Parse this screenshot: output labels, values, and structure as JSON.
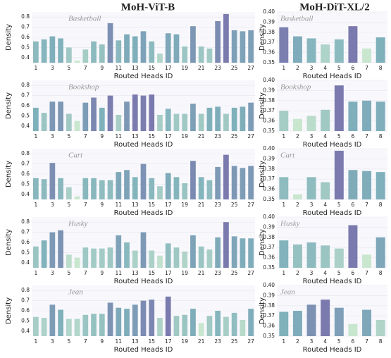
{
  "headers": [
    "MoH-ViT-B",
    "MoH-DiT-XL/2"
  ],
  "chart_data": [
    {
      "type": "bar",
      "title": "Basketball",
      "xlabel": "Routed Heads ID",
      "ylabel": "Density",
      "categories": [
        1,
        null,
        3,
        null,
        5,
        null,
        7,
        null,
        9,
        null,
        11,
        null,
        13,
        null,
        15,
        null,
        17,
        null,
        19,
        null,
        21,
        null,
        23,
        null,
        25,
        null,
        27
      ],
      "values": [
        0.56,
        0.58,
        0.61,
        0.59,
        0.5,
        0.37,
        0.48,
        0.56,
        0.53,
        0.74,
        0.57,
        0.63,
        0.61,
        0.66,
        0.56,
        0.44,
        0.64,
        0.63,
        0.51,
        0.71,
        0.51,
        0.49,
        0.76,
        0.83,
        0.67,
        0.66,
        0.67
      ],
      "ylim": [
        0.35,
        0.85
      ],
      "yticks": [
        0.4,
        0.5,
        0.6,
        0.7,
        0.8
      ],
      "grid": true,
      "colormap": [
        "#c9e6cf",
        "#7fb1bb",
        "#7b7aae"
      ]
    },
    {
      "type": "bar",
      "title": "Bookshop",
      "xlabel": "Routed Heads ID",
      "ylabel": "Density",
      "categories": [
        1,
        null,
        3,
        null,
        5,
        null,
        7,
        null,
        9,
        null,
        11,
        null,
        13,
        null,
        15,
        null,
        17,
        null,
        19,
        null,
        21,
        null,
        23,
        null,
        25,
        null,
        27
      ],
      "values": [
        0.58,
        0.53,
        0.64,
        0.64,
        0.52,
        0.45,
        0.63,
        0.68,
        0.58,
        0.7,
        0.51,
        0.64,
        0.71,
        0.7,
        0.71,
        0.51,
        0.57,
        0.52,
        0.52,
        0.62,
        0.52,
        0.58,
        0.59,
        0.52,
        0.58,
        0.59,
        0.63
      ],
      "ylim": [
        0.35,
        0.85
      ],
      "yticks": [
        0.4,
        0.5,
        0.6,
        0.7,
        0.8
      ],
      "grid": true,
      "colormap": [
        "#c9e6cf",
        "#7fb1bb",
        "#7b7aae"
      ]
    },
    {
      "type": "bar",
      "title": "Cart",
      "xlabel": "Routed Heads ID",
      "ylabel": "Density",
      "categories": [
        1,
        null,
        3,
        null,
        5,
        null,
        7,
        null,
        9,
        null,
        11,
        null,
        13,
        null,
        15,
        null,
        17,
        null,
        19,
        null,
        21,
        null,
        23,
        null,
        25,
        null,
        27
      ],
      "values": [
        0.56,
        0.55,
        0.71,
        0.56,
        0.47,
        0.38,
        0.56,
        0.56,
        0.54,
        0.54,
        0.62,
        0.64,
        0.57,
        0.7,
        0.56,
        0.48,
        0.61,
        0.57,
        0.51,
        0.73,
        0.57,
        0.54,
        0.67,
        0.79,
        0.68,
        0.66,
        0.68
      ],
      "ylim": [
        0.35,
        0.85
      ],
      "yticks": [
        0.4,
        0.5,
        0.6,
        0.7,
        0.8
      ],
      "grid": true,
      "colormap": [
        "#c9e6cf",
        "#7fb1bb",
        "#7b7aae"
      ]
    },
    {
      "type": "bar",
      "title": "Husky",
      "xlabel": "Routed Heads ID",
      "ylabel": "Density",
      "categories": [
        1,
        null,
        3,
        null,
        5,
        null,
        7,
        null,
        9,
        null,
        11,
        null,
        13,
        null,
        15,
        null,
        17,
        null,
        19,
        null,
        21,
        null,
        23,
        null,
        25,
        null,
        27
      ],
      "values": [
        0.56,
        0.62,
        0.7,
        0.72,
        0.48,
        0.45,
        0.55,
        0.54,
        0.54,
        0.55,
        0.67,
        0.6,
        0.52,
        0.7,
        0.52,
        0.47,
        0.59,
        0.55,
        0.51,
        0.67,
        0.56,
        0.53,
        0.65,
        0.8,
        0.66,
        0.64,
        0.64
      ],
      "ylim": [
        0.35,
        0.85
      ],
      "yticks": [
        0.4,
        0.5,
        0.6,
        0.7,
        0.8
      ],
      "grid": true,
      "colormap": [
        "#c9e6cf",
        "#7fb1bb",
        "#7b7aae"
      ]
    },
    {
      "type": "bar",
      "title": "Jean",
      "xlabel": "Routed Heads ID",
      "ylabel": "Density",
      "categories": [
        1,
        null,
        3,
        null,
        5,
        null,
        7,
        null,
        9,
        null,
        11,
        null,
        13,
        null,
        15,
        null,
        17,
        null,
        19,
        null,
        21,
        null,
        23,
        null,
        25,
        null,
        27
      ],
      "values": [
        0.54,
        0.53,
        0.66,
        0.61,
        0.52,
        0.52,
        0.56,
        0.57,
        0.57,
        0.68,
        0.63,
        0.62,
        0.66,
        0.7,
        0.71,
        0.53,
        0.74,
        0.55,
        0.56,
        0.62,
        0.48,
        0.55,
        0.6,
        0.54,
        0.58,
        0.51,
        0.62
      ],
      "ylim": [
        0.35,
        0.85
      ],
      "yticks": [
        0.4,
        0.5,
        0.6,
        0.7,
        0.8
      ],
      "grid": true,
      "colormap": [
        "#c9e6cf",
        "#7fb1bb",
        "#7b7aae"
      ]
    },
    {
      "type": "bar",
      "title": "Basketball",
      "xlabel": "Routed Heads ID",
      "ylabel": "Density",
      "categories": [
        1,
        2,
        3,
        4,
        5,
        6,
        7,
        8
      ],
      "values": [
        0.385,
        0.376,
        0.374,
        0.368,
        0.373,
        0.386,
        0.364,
        0.375
      ],
      "ylim": [
        0.35,
        0.4
      ],
      "yticks": [
        0.35,
        0.36,
        0.37,
        0.38,
        0.39,
        {
          "value": 0.4,
          "label": "0.40"
        }
      ],
      "grid": true,
      "colormap": [
        "#c9e6cf",
        "#7fb1bb",
        "#7b7aae"
      ]
    },
    {
      "type": "bar",
      "title": "Bookshop",
      "xlabel": "Routed Heads ID",
      "ylabel": "Density",
      "categories": [
        1,
        2,
        3,
        4,
        5,
        6,
        7,
        8
      ],
      "values": [
        0.37,
        0.362,
        0.365,
        0.371,
        0.395,
        0.379,
        0.38,
        0.379
      ],
      "ylim": [
        0.35,
        0.4
      ],
      "yticks": [
        0.35,
        0.36,
        0.37,
        0.38,
        0.39,
        {
          "value": 0.4,
          "label": "0.40"
        }
      ],
      "grid": true,
      "colormap": [
        "#c9e6cf",
        "#7fb1bb",
        "#7b7aae"
      ]
    },
    {
      "type": "bar",
      "title": "Cart",
      "xlabel": "Routed Heads ID",
      "ylabel": "Density",
      "categories": [
        1,
        2,
        3,
        4,
        5,
        6,
        7,
        8
      ],
      "values": [
        0.372,
        0.355,
        0.372,
        0.367,
        0.398,
        0.379,
        0.378,
        0.377
      ],
      "ylim": [
        0.35,
        0.4
      ],
      "yticks": [
        0.35,
        0.36,
        0.37,
        0.38,
        0.39,
        {
          "value": 0.4,
          "label": "0.40"
        }
      ],
      "grid": true,
      "colormap": [
        "#c9e6cf",
        "#7fb1bb",
        "#7b7aae"
      ]
    },
    {
      "type": "bar",
      "title": "Husky",
      "xlabel": "Routed Heads ID",
      "ylabel": "Density",
      "categories": [
        1,
        2,
        3,
        4,
        5,
        6,
        7,
        8
      ],
      "values": [
        0.377,
        0.373,
        0.375,
        0.372,
        0.369,
        0.392,
        0.363,
        0.38
      ],
      "ylim": [
        0.35,
        0.4
      ],
      "yticks": [
        0.35,
        0.36,
        0.37,
        0.38,
        0.39,
        {
          "value": 0.4,
          "label": "0.40"
        }
      ],
      "grid": true,
      "colormap": [
        "#c9e6cf",
        "#7fb1bb",
        "#7b7aae"
      ]
    },
    {
      "type": "bar",
      "title": "Jean",
      "xlabel": "Routed Heads ID",
      "ylabel": "Density",
      "categories": [
        1,
        2,
        3,
        4,
        5,
        6,
        7,
        8
      ],
      "values": [
        0.374,
        0.375,
        0.381,
        0.386,
        0.378,
        0.362,
        0.376,
        0.366
      ],
      "ylim": [
        0.35,
        0.4
      ],
      "yticks": [
        0.35,
        0.36,
        0.37,
        0.38,
        0.39,
        {
          "value": 0.4,
          "label": "0.40"
        }
      ],
      "grid": true,
      "colormap": [
        "#c9e6cf",
        "#7fb1bb",
        "#7b7aae"
      ]
    }
  ]
}
